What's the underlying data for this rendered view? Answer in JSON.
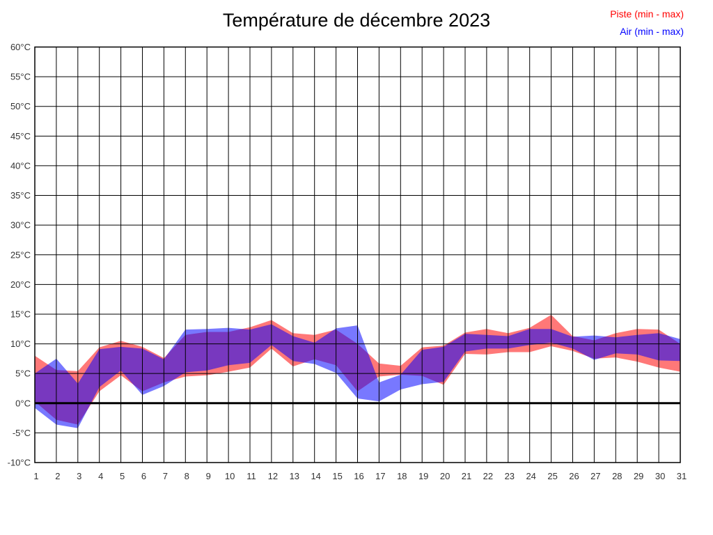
{
  "title": "Température de décembre 2023",
  "legend": {
    "piste": "Piste (min - max)",
    "air": "Air (min - max)"
  },
  "chart_data": {
    "type": "area",
    "subtype": "min-max-band",
    "title": "Température de décembre 2023",
    "xlabel": "",
    "ylabel": "",
    "x": [
      1,
      2,
      3,
      4,
      5,
      6,
      7,
      8,
      9,
      10,
      11,
      12,
      13,
      14,
      15,
      16,
      17,
      18,
      19,
      20,
      21,
      22,
      23,
      24,
      25,
      26,
      27,
      28,
      29,
      30,
      31
    ],
    "ylim": [
      -10,
      60
    ],
    "ytick_step": 5,
    "ytick_suffix": "°C",
    "grid": true,
    "zero_line_bold": true,
    "legend_position": "top-right",
    "series": [
      {
        "name": "Piste (min - max)",
        "color": "#ff0000",
        "fill_opacity": 0.53,
        "min": [
          0.3,
          -2.8,
          -3.6,
          2.0,
          4.7,
          2.0,
          3.5,
          4.5,
          4.7,
          5.3,
          6.0,
          9.2,
          6.2,
          7.4,
          6.4,
          2.0,
          4.5,
          4.8,
          4.6,
          3.1,
          8.3,
          8.2,
          8.6,
          8.6,
          9.6,
          8.8,
          7.5,
          7.7,
          7.0,
          6.0,
          5.3
        ],
        "max": [
          8.0,
          5.6,
          5.4,
          9.4,
          10.5,
          9.5,
          7.6,
          11.5,
          12.0,
          12.0,
          12.8,
          14.0,
          11.8,
          11.5,
          12.4,
          10.0,
          6.7,
          6.3,
          9.4,
          9.7,
          11.9,
          12.5,
          11.8,
          12.7,
          14.9,
          11.3,
          10.6,
          11.8,
          12.5,
          12.4,
          10.0
        ]
      },
      {
        "name": "Air (min - max)",
        "color": "#0000ff",
        "fill_opacity": 0.53,
        "min": [
          -0.8,
          -3.6,
          -4.2,
          2.7,
          5.5,
          1.4,
          2.9,
          5.2,
          5.5,
          6.4,
          6.8,
          9.8,
          7.1,
          6.6,
          5.1,
          0.8,
          0.3,
          2.3,
          3.2,
          3.6,
          8.7,
          9.2,
          9.2,
          9.8,
          10.2,
          9.2,
          7.3,
          8.4,
          8.2,
          7.2,
          7.1
        ],
        "max": [
          5.0,
          7.5,
          3.3,
          9.1,
          9.5,
          9.2,
          7.4,
          12.4,
          12.5,
          12.7,
          12.4,
          13.3,
          11.3,
          10.2,
          12.6,
          13.1,
          3.5,
          4.8,
          9.0,
          9.5,
          11.7,
          11.5,
          11.3,
          12.5,
          12.5,
          11.2,
          11.4,
          11.1,
          11.5,
          11.8,
          10.8
        ]
      }
    ]
  }
}
